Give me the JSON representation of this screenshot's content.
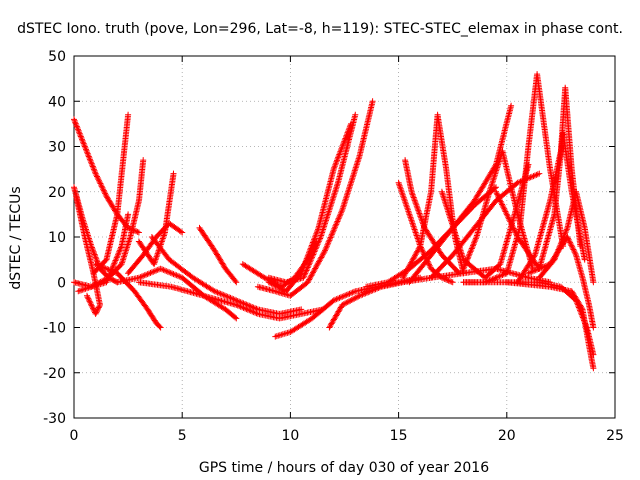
{
  "chart_data": {
    "type": "scatter",
    "title": "dSTEC Iono. truth (pove, Lon=296, Lat=-8, h=119): STEC-STEC_elemax in phase cont.",
    "xlabel": "GPS time / hours of day 030 of year 2016",
    "ylabel": "dSTEC  / TECUs",
    "xlim": [
      0,
      25
    ],
    "ylim": [
      -30,
      50
    ],
    "xticks": [
      0,
      5,
      10,
      15,
      20,
      25
    ],
    "yticks": [
      -30,
      -20,
      -10,
      0,
      10,
      20,
      30,
      40,
      50
    ],
    "grid": true,
    "marker": "+",
    "series_color": "#ff0000",
    "series": [
      {
        "x": [
          0.0,
          0.5,
          1.0,
          1.5,
          2.0,
          2.5,
          3.0
        ],
        "y": [
          36,
          30,
          24,
          19,
          15,
          12,
          11
        ]
      },
      {
        "x": [
          0.0,
          0.4,
          0.8,
          1.2,
          1.6,
          2.0
        ],
        "y": [
          21,
          14,
          8,
          3,
          1,
          0
        ]
      },
      {
        "x": [
          0.1,
          0.5,
          0.9,
          1.2,
          1.0,
          0.6
        ],
        "y": [
          19,
          10,
          2,
          -5,
          -7,
          -3
        ]
      },
      {
        "x": [
          0.0,
          0.8,
          1.5,
          2.2,
          2.5
        ],
        "y": [
          0,
          -1,
          0,
          8,
          15
        ]
      },
      {
        "x": [
          0.9,
          1.5,
          2.0,
          2.5
        ],
        "y": [
          2,
          5,
          15,
          37
        ]
      },
      {
        "x": [
          0.2,
          0.8,
          1.6,
          2.2,
          2.6,
          3.0,
          3.2
        ],
        "y": [
          -2,
          -1,
          1,
          4,
          10,
          18,
          27
        ]
      },
      {
        "x": [
          1.0,
          2.0,
          2.8,
          3.4,
          3.8,
          4.0
        ],
        "y": [
          4,
          2,
          -2,
          -6,
          -9,
          -10
        ]
      },
      {
        "x": [
          2.5,
          3.2,
          3.8,
          4.4,
          5.0
        ],
        "y": [
          2,
          6,
          10,
          13,
          11
        ]
      },
      {
        "x": [
          3.0,
          3.7,
          4.2,
          4.6
        ],
        "y": [
          9,
          4,
          11,
          24
        ]
      },
      {
        "x": [
          2.0,
          3.0,
          4.0,
          5.0,
          6.0,
          7.0,
          7.5
        ],
        "y": [
          0,
          1,
          3,
          1,
          -3,
          -6,
          -8
        ]
      },
      {
        "x": [
          3.6,
          4.4,
          5.5,
          6.5,
          7.5,
          8.5,
          9.5,
          10.5
        ],
        "y": [
          10,
          5,
          1,
          -2,
          -4,
          -6,
          -7,
          -6
        ]
      },
      {
        "x": [
          3.0,
          4.5,
          6.0,
          7.5,
          8.5,
          9.5,
          10.5,
          11.5
        ],
        "y": [
          0,
          -1,
          -3,
          -5,
          -7,
          -8,
          -7,
          -6
        ]
      },
      {
        "x": [
          5.8,
          6.5,
          7.0,
          7.5
        ],
        "y": [
          12,
          7,
          3,
          0
        ]
      },
      {
        "x": [
          7.8,
          8.8,
          9.6,
          10.2,
          10.8,
          11.2
        ],
        "y": [
          4,
          1,
          -1,
          1,
          5,
          9
        ]
      },
      {
        "x": [
          8.5,
          9.3,
          10.0,
          10.8,
          11.6,
          12.4,
          13.2,
          13.8
        ],
        "y": [
          -1,
          -2,
          -3,
          0,
          7,
          16,
          28,
          40
        ]
      },
      {
        "x": [
          9.0,
          9.8,
          10.6,
          11.4,
          12.2,
          13.0
        ],
        "y": [
          1,
          0,
          1,
          10,
          22,
          37
        ]
      },
      {
        "x": [
          9.0,
          9.8,
          10.5,
          11.3,
          12.0,
          12.8
        ],
        "y": [
          0,
          -2,
          2,
          12,
          25,
          35
        ]
      },
      {
        "x": [
          9.3,
          10.0,
          11.0,
          12.0,
          13.0,
          14.0,
          15.0,
          16.0
        ],
        "y": [
          -12,
          -11,
          -8,
          -4,
          -2,
          -1,
          0,
          1
        ]
      },
      {
        "x": [
          11.8,
          12.4,
          13.2,
          14.2,
          15.2,
          16.5,
          18.0,
          19.5,
          21.0,
          22.0
        ],
        "y": [
          -10,
          -5,
          -3,
          -1,
          0,
          1,
          2,
          3,
          1,
          0
        ]
      },
      {
        "x": [
          13.5,
          14.5,
          15.5,
          16.5,
          17.5,
          18.5,
          19.5
        ],
        "y": [
          -1,
          0,
          3,
          7,
          12,
          17,
          21
        ]
      },
      {
        "x": [
          15.0,
          15.5,
          16.0,
          16.5,
          17.0,
          17.5
        ],
        "y": [
          22,
          15,
          8,
          3,
          1,
          0
        ]
      },
      {
        "x": [
          15.3,
          15.6,
          16.2,
          17.0,
          17.8
        ],
        "y": [
          27,
          20,
          12,
          6,
          2
        ]
      },
      {
        "x": [
          15.2,
          16.0,
          16.5,
          16.8,
          17.2,
          17.6,
          18.0
        ],
        "y": [
          1,
          8,
          20,
          37,
          25,
          10,
          2
        ]
      },
      {
        "x": [
          15.5,
          16.5,
          17.5,
          18.5,
          19.5,
          20.2
        ],
        "y": [
          0,
          6,
          12,
          18,
          26,
          39
        ]
      },
      {
        "x": [
          16.5,
          17.5,
          18.5,
          19.5,
          20.5,
          21.5
        ],
        "y": [
          1,
          6,
          12,
          18,
          22,
          24
        ]
      },
      {
        "x": [
          17.0,
          18.0,
          19.0,
          19.7,
          20.3,
          21.0
        ],
        "y": [
          20,
          5,
          1,
          4,
          14,
          26
        ]
      },
      {
        "x": [
          18.0,
          18.6,
          19.2,
          19.8,
          20.5,
          21.2
        ],
        "y": [
          3,
          10,
          20,
          29,
          15,
          3
        ]
      },
      {
        "x": [
          18.0,
          19.0,
          20.0,
          20.6,
          21.0,
          21.4,
          22.0,
          22.6
        ],
        "y": [
          0,
          0,
          2,
          12,
          30,
          46,
          25,
          8
        ]
      },
      {
        "x": [
          19.5,
          20.5,
          21.5,
          22.2,
          22.6,
          23.0,
          23.6
        ],
        "y": [
          20,
          10,
          3,
          15,
          33,
          20,
          5
        ]
      },
      {
        "x": [
          20.5,
          21.3,
          22.0,
          22.5,
          22.7,
          23.0,
          23.4
        ],
        "y": [
          0,
          6,
          18,
          29,
          43,
          25,
          8
        ]
      },
      {
        "x": [
          21.0,
          22.0,
          22.8,
          23.2,
          23.5,
          23.8,
          24.0
        ],
        "y": [
          2,
          4,
          10,
          6,
          1,
          -5,
          -10
        ]
      },
      {
        "x": [
          21.5,
          22.2,
          22.8,
          23.2,
          23.6,
          24.0
        ],
        "y": [
          1,
          5,
          12,
          20,
          12,
          0
        ]
      },
      {
        "x": [
          18.0,
          20.0,
          22.0,
          23.0,
          23.5,
          23.8,
          24.0
        ],
        "y": [
          0,
          0,
          -1,
          -2,
          -6,
          -14,
          -19
        ]
      },
      {
        "x": [
          20.0,
          21.5,
          22.5,
          23.2,
          23.7,
          24.0
        ],
        "y": [
          0,
          0,
          -1,
          -4,
          -10,
          -16
        ]
      }
    ]
  }
}
